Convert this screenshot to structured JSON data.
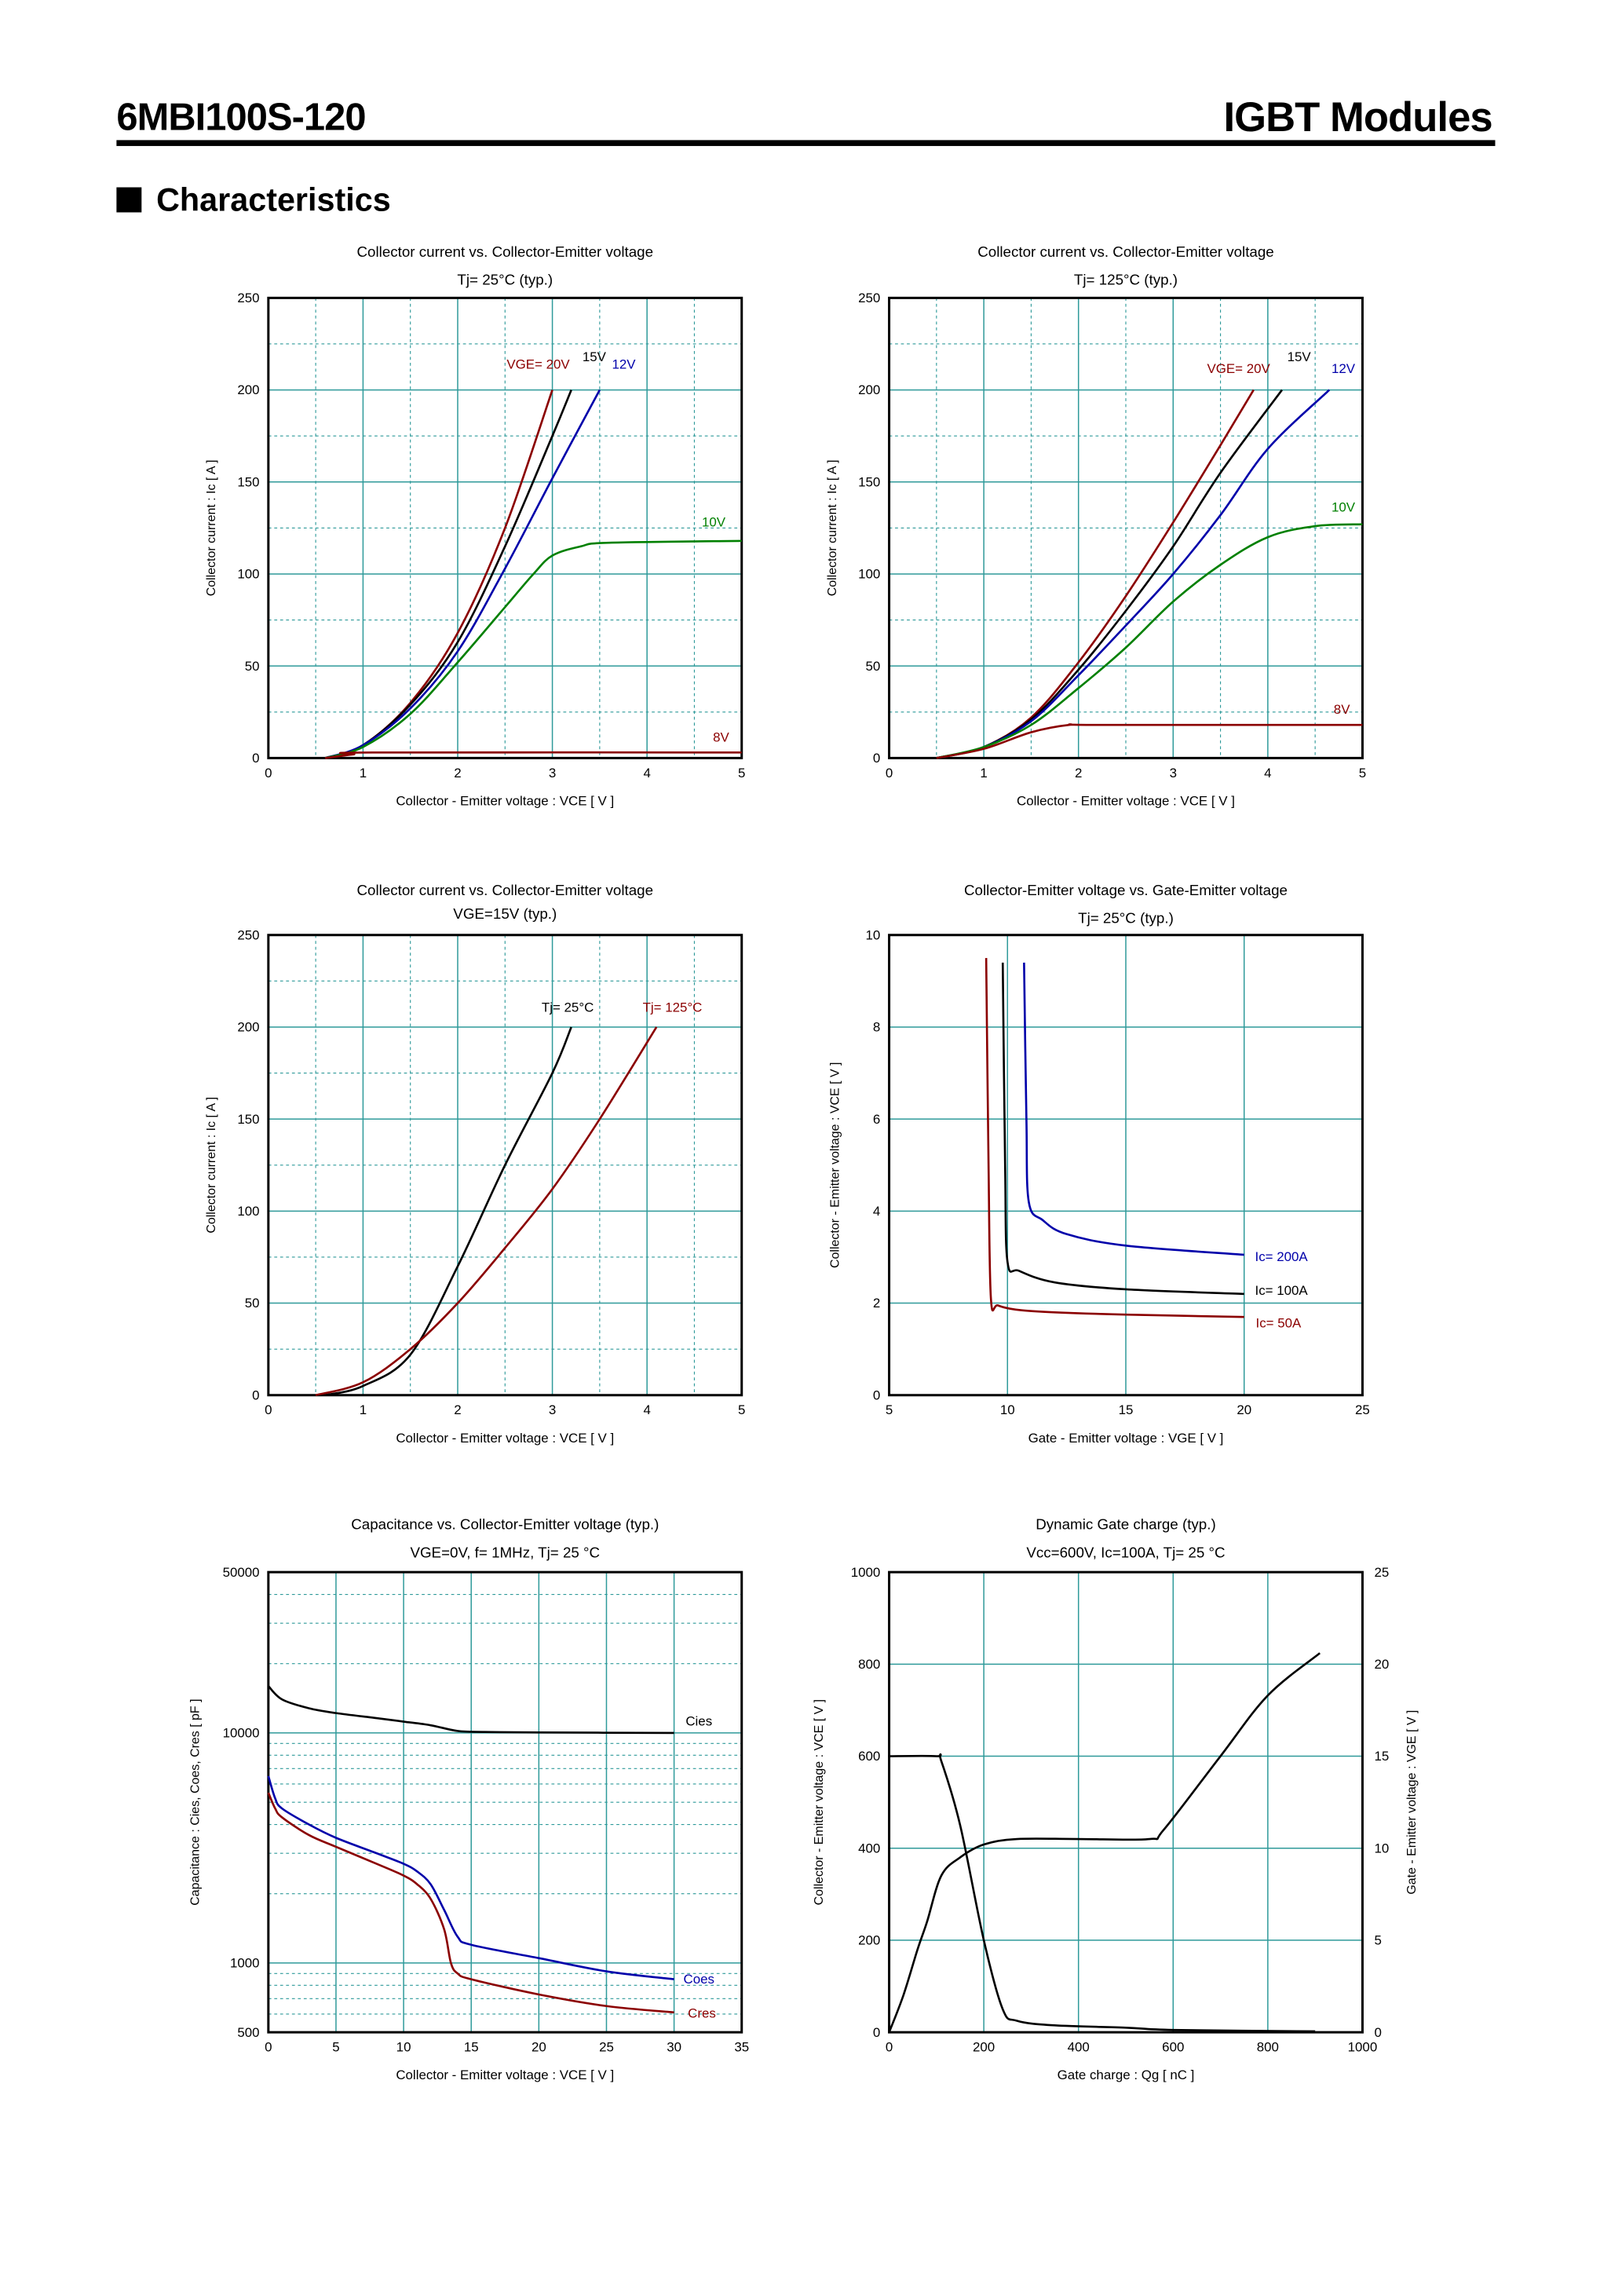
{
  "header": {
    "model": "6MBI100S-120",
    "product": "IGBT Modules",
    "section": "Characteristics"
  },
  "colors": {
    "darkred": "#8b0000",
    "black": "#000000",
    "blue": "#0000aa",
    "green": "#008000",
    "grid": "#2f9a9a"
  },
  "chart_data": [
    {
      "type": "line",
      "title": [
        "Collector current  vs.  Collector-Emitter voltage",
        "Tj= 25°C  (typ.)"
      ],
      "xlabel": "Collector - Emitter voltage  :  VCE  [ V ]",
      "ylabel": "Collector current  :  Ic  [ A ]",
      "xlim": [
        0,
        5
      ],
      "ylim": [
        0,
        250
      ],
      "xticks": [
        "0",
        "1",
        "2",
        "3",
        "4",
        "5"
      ],
      "yticks": [
        "0",
        "50",
        "100",
        "150",
        "200",
        "250"
      ],
      "grid": true,
      "series": [
        {
          "name": "VGE= 20V",
          "color": "#8b0000",
          "points": [
            [
              0.6,
              0
            ],
            [
              1,
              7
            ],
            [
              1.5,
              30
            ],
            [
              2,
              68
            ],
            [
              2.5,
              125
            ],
            [
              3.0,
              200
            ]
          ]
        },
        {
          "name": "15V",
          "color": "#000000",
          "points": [
            [
              0.6,
              0
            ],
            [
              1,
              7
            ],
            [
              1.5,
              29
            ],
            [
              2,
              63
            ],
            [
              2.5,
              115
            ],
            [
              3.0,
              175
            ],
            [
              3.2,
              200
            ]
          ]
        },
        {
          "name": "12V",
          "color": "#0000aa",
          "points": [
            [
              0.6,
              0
            ],
            [
              1,
              7
            ],
            [
              1.5,
              27
            ],
            [
              2,
              58
            ],
            [
              2.5,
              103
            ],
            [
              3,
              152
            ],
            [
              3.5,
              200
            ]
          ]
        },
        {
          "name": "10V",
          "color": "#008000",
          "points": [
            [
              0.6,
              0
            ],
            [
              1,
              6
            ],
            [
              1.5,
              24
            ],
            [
              2,
              52
            ],
            [
              2.5,
              82
            ],
            [
              2.8,
              100
            ],
            [
              3.0,
              110
            ],
            [
              3.3,
              115
            ],
            [
              3.6,
              117
            ],
            [
              5,
              118
            ]
          ]
        },
        {
          "name": "8V",
          "color": "#8b0000",
          "points": [
            [
              0.6,
              0
            ],
            [
              0.9,
              2
            ],
            [
              1.1,
              3
            ],
            [
              5,
              3
            ]
          ]
        }
      ]
    },
    {
      "type": "line",
      "title": [
        "Collector current  vs.  Collector-Emitter voltage",
        "Tj= 125°C  (typ.)"
      ],
      "xlabel": "Collector - Emitter voltage  :  VCE  [ V ]",
      "ylabel": "Collector current  :  Ic  [ A ]",
      "xlim": [
        0,
        5
      ],
      "ylim": [
        0,
        250
      ],
      "xticks": [
        "0",
        "1",
        "2",
        "3",
        "4",
        "5"
      ],
      "yticks": [
        "0",
        "50",
        "100",
        "150",
        "200",
        "250"
      ],
      "grid": true,
      "series": [
        {
          "name": "VGE= 20V",
          "color": "#8b0000",
          "points": [
            [
              0.5,
              0
            ],
            [
              1,
              6
            ],
            [
              1.5,
              22
            ],
            [
              2,
              52
            ],
            [
              2.5,
              88
            ],
            [
              3,
              128
            ],
            [
              3.5,
              170
            ],
            [
              3.85,
              200
            ]
          ]
        },
        {
          "name": "15V",
          "color": "#000000",
          "points": [
            [
              0.5,
              0
            ],
            [
              1,
              6
            ],
            [
              1.5,
              21
            ],
            [
              2,
              48
            ],
            [
              2.5,
              80
            ],
            [
              3,
              115
            ],
            [
              3.5,
              155
            ],
            [
              4.15,
              200
            ]
          ]
        },
        {
          "name": "12V",
          "color": "#0000aa",
          "points": [
            [
              0.5,
              0
            ],
            [
              1,
              6
            ],
            [
              1.5,
              20
            ],
            [
              2,
              45
            ],
            [
              2.5,
              72
            ],
            [
              3,
              100
            ],
            [
              3.5,
              132
            ],
            [
              4,
              168
            ],
            [
              4.65,
              200
            ]
          ]
        },
        {
          "name": "10V",
          "color": "#008000",
          "points": [
            [
              0.5,
              0
            ],
            [
              1,
              6
            ],
            [
              1.5,
              18
            ],
            [
              2,
              38
            ],
            [
              2.5,
              60
            ],
            [
              3,
              85
            ],
            [
              3.5,
              105
            ],
            [
              4,
              120
            ],
            [
              4.5,
              126
            ],
            [
              5,
              127
            ]
          ]
        },
        {
          "name": "8V",
          "color": "#8b0000",
          "points": [
            [
              0.5,
              0
            ],
            [
              1,
              5
            ],
            [
              1.5,
              14
            ],
            [
              1.9,
              18
            ],
            [
              2.2,
              18
            ],
            [
              5,
              18
            ]
          ]
        }
      ]
    },
    {
      "type": "line",
      "title": [
        "Collector current  vs.  Collector-Emitter voltage",
        "VGE=15V  (typ.)"
      ],
      "xlabel": "Collector - Emitter voltage  :  VCE  [ V ]",
      "ylabel": "Collector current  :  Ic  [ A ]",
      "xlim": [
        0,
        5
      ],
      "ylim": [
        0,
        250
      ],
      "xticks": [
        "0",
        "1",
        "2",
        "3",
        "4",
        "5"
      ],
      "yticks": [
        "0",
        "50",
        "100",
        "150",
        "200",
        "250"
      ],
      "grid": true,
      "series": [
        {
          "name": "Tj= 25°C",
          "color": "#000000",
          "points": [
            [
              0.6,
              0
            ],
            [
              1,
              5
            ],
            [
              1.5,
              22
            ],
            [
              2,
              70
            ],
            [
              2.5,
              125
            ],
            [
              3,
              175
            ],
            [
              3.2,
              200
            ]
          ]
        },
        {
          "name": "Tj= 125°C",
          "color": "#8b0000",
          "points": [
            [
              0.5,
              0
            ],
            [
              1,
              7
            ],
            [
              1.5,
              25
            ],
            [
              2,
              50
            ],
            [
              2.5,
              80
            ],
            [
              3,
              112
            ],
            [
              3.5,
              150
            ],
            [
              4.1,
              200
            ]
          ]
        }
      ]
    },
    {
      "type": "line",
      "title": [
        "Collector-Emitter voltage  vs. Gate-Emitter voltage",
        "Tj= 25°C  (typ.)"
      ],
      "xlabel": "Gate - Emitter voltage  :  VGE  [ V ]",
      "ylabel": "Collector - Emitter voltage  :  VCE  [ V ]",
      "xlim": [
        5,
        25
      ],
      "ylim": [
        0,
        10
      ],
      "xticks": [
        "5",
        "10",
        "15",
        "20",
        "25"
      ],
      "yticks": [
        "0",
        "2",
        "4",
        "6",
        "8",
        "10"
      ],
      "grid": true,
      "series": [
        {
          "name": "Ic= 200A",
          "color": "#0000aa",
          "points": [
            [
              10.7,
              9.4
            ],
            [
              10.8,
              6
            ],
            [
              10.9,
              4.2
            ],
            [
              11.5,
              3.8
            ],
            [
              12.5,
              3.5
            ],
            [
              15,
              3.25
            ],
            [
              20,
              3.05
            ]
          ]
        },
        {
          "name": "Ic= 100A",
          "color": "#000000",
          "points": [
            [
              9.8,
              9.4
            ],
            [
              9.9,
              5
            ],
            [
              10,
              2.9
            ],
            [
              10.5,
              2.7
            ],
            [
              12,
              2.45
            ],
            [
              15,
              2.3
            ],
            [
              20,
              2.2
            ]
          ]
        },
        {
          "name": "Ic= 50A",
          "color": "#8b0000",
          "points": [
            [
              9.1,
              9.5
            ],
            [
              9.2,
              5
            ],
            [
              9.3,
              2.1
            ],
            [
              9.6,
              1.95
            ],
            [
              10.5,
              1.85
            ],
            [
              12,
              1.8
            ],
            [
              15,
              1.75
            ],
            [
              20,
              1.7
            ]
          ]
        }
      ]
    },
    {
      "type": "line",
      "title": [
        "Capacitance  vs.  Collector-Emitter voltage  (typ.)",
        "VGE=0V,  f= 1MHz,  Tj= 25 °C"
      ],
      "xlabel": "Collector - Emitter voltage  :  VCE  [ V ]",
      "ylabel": "Capacitance  :  Cies, Coes, Cres  [ pF ]",
      "xlim": [
        0,
        35
      ],
      "ylim": [
        500,
        50000
      ],
      "yscale": "log",
      "xticks": [
        "0",
        "5",
        "10",
        "15",
        "20",
        "25",
        "30",
        "35"
      ],
      "yticks": [
        "500",
        "1000",
        "10000",
        "50000"
      ],
      "grid": true,
      "series": [
        {
          "name": "Cies",
          "color": "#000000",
          "points": [
            [
              0,
              16000
            ],
            [
              1,
              14000
            ],
            [
              3,
              12800
            ],
            [
              5,
              12200
            ],
            [
              8,
              11600
            ],
            [
              10,
              11200
            ],
            [
              12,
              10800
            ],
            [
              14,
              10200
            ],
            [
              16,
              10100
            ],
            [
              20,
              10050
            ],
            [
              30,
              10000
            ]
          ]
        },
        {
          "name": "Coes",
          "color": "#0000aa",
          "points": [
            [
              0,
              6500
            ],
            [
              0.5,
              5200
            ],
            [
              1,
              4700
            ],
            [
              3,
              4000
            ],
            [
              5,
              3500
            ],
            [
              8,
              3000
            ],
            [
              10,
              2700
            ],
            [
              11,
              2500
            ],
            [
              12,
              2200
            ],
            [
              13,
              1700
            ],
            [
              14,
              1300
            ],
            [
              15,
              1200
            ],
            [
              20,
              1050
            ],
            [
              25,
              920
            ],
            [
              30,
              850
            ]
          ]
        },
        {
          "name": "Cres",
          "color": "#8b0000",
          "points": [
            [
              0,
              5500
            ],
            [
              0.5,
              4700
            ],
            [
              1,
              4300
            ],
            [
              3,
              3600
            ],
            [
              5,
              3200
            ],
            [
              8,
              2700
            ],
            [
              10,
              2400
            ],
            [
              11,
              2200
            ],
            [
              12,
              1900
            ],
            [
              13,
              1400
            ],
            [
              13.5,
              1000
            ],
            [
              14,
              900
            ],
            [
              15,
              850
            ],
            [
              20,
              730
            ],
            [
              25,
              650
            ],
            [
              30,
              610
            ]
          ]
        }
      ]
    },
    {
      "type": "line",
      "title": [
        "Dynamic Gate charge  (typ.)",
        "Vcc=600V, Ic=100A, Tj= 25 °C"
      ],
      "xlabel": "Gate charge  :  Qg  [ nC ]",
      "ylabel": "Collector - Emitter voltage  :  VCE  [ V ]",
      "ylabel_right": "Gate - Emitter voltage  :  VGE  [ V ]",
      "xlim": [
        0,
        1000
      ],
      "ylim": [
        0,
        1000
      ],
      "ylim_right": [
        0,
        25
      ],
      "xticks": [
        "0",
        "200",
        "400",
        "600",
        "800",
        "1000"
      ],
      "yticks": [
        "0",
        "200",
        "400",
        "600",
        "800",
        "1000"
      ],
      "yticks_right": [
        "0",
        "5",
        "10",
        "15",
        "20",
        "25"
      ],
      "grid": true,
      "series": [
        {
          "axis": "left",
          "color": "#000000",
          "points": [
            [
              0,
              600
            ],
            [
              100,
              600
            ],
            [
              110,
              590
            ],
            [
              150,
              450
            ],
            [
              200,
              200
            ],
            [
              240,
              50
            ],
            [
              270,
              25
            ],
            [
              350,
              15
            ],
            [
              500,
              10
            ],
            [
              600,
              5
            ],
            [
              900,
              2
            ]
          ]
        },
        {
          "axis": "right",
          "color": "#000000",
          "points": [
            [
              0,
              0
            ],
            [
              30,
              2
            ],
            [
              60,
              4.5
            ],
            [
              80,
              6
            ],
            [
              110,
              8.5
            ],
            [
              150,
              9.5
            ],
            [
              200,
              10.2
            ],
            [
              270,
              10.5
            ],
            [
              400,
              10.5
            ],
            [
              550,
              10.5
            ],
            [
              580,
              11
            ],
            [
              700,
              15
            ],
            [
              800,
              18.3
            ],
            [
              910,
              20.6
            ]
          ]
        }
      ]
    }
  ]
}
